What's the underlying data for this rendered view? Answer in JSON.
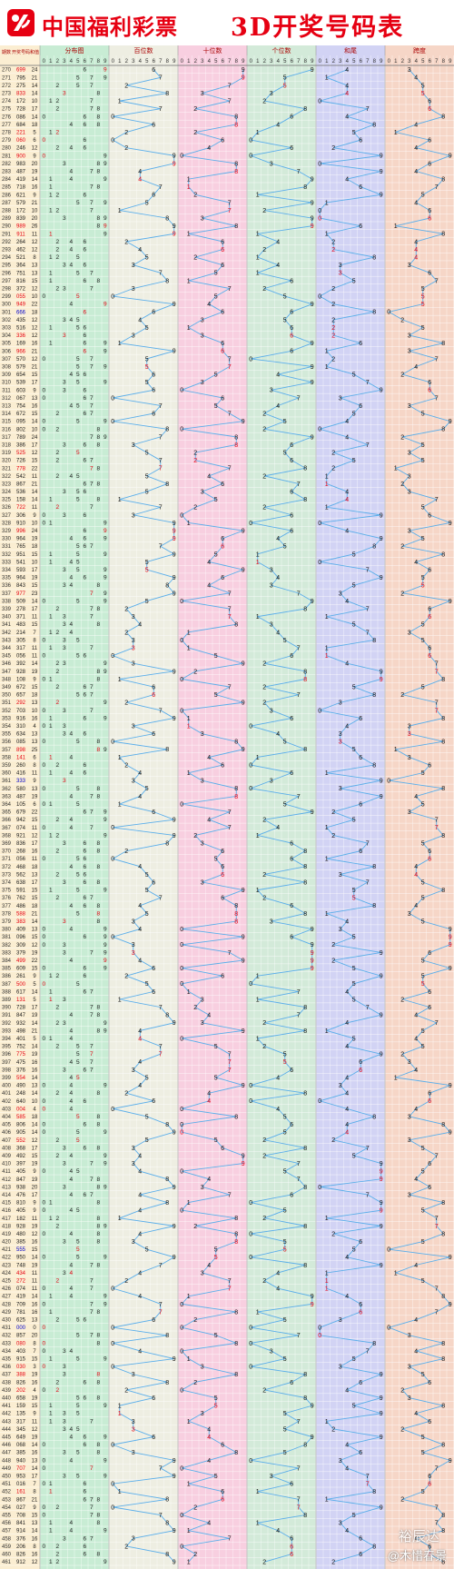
{
  "header": {
    "brand": "中国福利彩票",
    "title": "3D开奖号码表"
  },
  "watermark": {
    "top": "裕辰达",
    "bottom": "@木惜春景"
  },
  "colors": {
    "brand_red": "#e60012",
    "line": "#5aaeea",
    "bg_fenbu": "#c8ecd4",
    "bg_bai": "#eeeee2",
    "bg_shi": "#f8cfe0",
    "bg_ge": "#d3ead9",
    "bg_he": "#d2d3f4",
    "bg_kua": "#f6d6c7"
  },
  "chart_data": {
    "type": "table",
    "columns": {
      "issue": "期数",
      "number": "开奖号码",
      "sum": "和值",
      "sections": [
        "分布图",
        "百位数",
        "十位数",
        "个位数",
        "和尾",
        "跨度"
      ],
      "digits": [
        "0",
        "1",
        "2",
        "3",
        "4",
        "5",
        "6",
        "7",
        "8",
        "9"
      ]
    },
    "rows": [
      {
        "issue": "270",
        "number": "699",
        "sum": "24"
      },
      {
        "issue": "271",
        "number": "795",
        "sum": "21"
      },
      {
        "issue": "272",
        "number": "275",
        "sum": "14"
      },
      {
        "issue": "273",
        "number": "833",
        "sum": "14"
      },
      {
        "issue": "274",
        "number": "172",
        "sum": "10"
      },
      {
        "issue": "275",
        "number": "728",
        "sum": "17"
      },
      {
        "issue": "276",
        "number": "086",
        "sum": "14"
      },
      {
        "issue": "277",
        "number": "684",
        "sum": "18"
      },
      {
        "issue": "278",
        "number": "221",
        "sum": "5"
      },
      {
        "issue": "279",
        "number": "060",
        "sum": "6"
      },
      {
        "issue": "280",
        "number": "246",
        "sum": "12"
      },
      {
        "issue": "281",
        "number": "900",
        "sum": "9"
      },
      {
        "issue": "282",
        "number": "983",
        "sum": "20"
      },
      {
        "issue": "283",
        "number": "487",
        "sum": "19"
      },
      {
        "issue": "284",
        "number": "419",
        "sum": "14"
      },
      {
        "issue": "285",
        "number": "718",
        "sum": "16"
      },
      {
        "issue": "286",
        "number": "621",
        "sum": "9"
      },
      {
        "issue": "287",
        "number": "579",
        "sum": "21"
      },
      {
        "issue": "288",
        "number": "172",
        "sum": "10"
      },
      {
        "issue": "289",
        "number": "839",
        "sum": "20"
      },
      {
        "issue": "290",
        "number": "989",
        "sum": "26"
      },
      {
        "issue": "291",
        "number": "911",
        "sum": "11"
      },
      {
        "issue": "292",
        "number": "264",
        "sum": "12"
      },
      {
        "issue": "293",
        "number": "462",
        "sum": "12"
      },
      {
        "issue": "294",
        "number": "521",
        "sum": "8"
      },
      {
        "issue": "295",
        "number": "364",
        "sum": "13"
      },
      {
        "issue": "296",
        "number": "751",
        "sum": "13"
      },
      {
        "issue": "297",
        "number": "816",
        "sum": "15"
      },
      {
        "issue": "298",
        "number": "372",
        "sum": "12"
      },
      {
        "issue": "299",
        "number": "055",
        "sum": "10"
      },
      {
        "issue": "300",
        "number": "949",
        "sum": "22"
      },
      {
        "issue": "301",
        "number": "666",
        "sum": "18"
      },
      {
        "issue": "302",
        "number": "435",
        "sum": "12"
      },
      {
        "issue": "303",
        "number": "516",
        "sum": "12"
      },
      {
        "issue": "304",
        "number": "336",
        "sum": "12"
      },
      {
        "issue": "305",
        "number": "169",
        "sum": "16"
      },
      {
        "issue": "306",
        "number": "966",
        "sum": "21"
      },
      {
        "issue": "307",
        "number": "570",
        "sum": "12"
      },
      {
        "issue": "308",
        "number": "579",
        "sum": "21"
      },
      {
        "issue": "309",
        "number": "654",
        "sum": "15"
      },
      {
        "issue": "310",
        "number": "539",
        "sum": "17"
      },
      {
        "issue": "311",
        "number": "603",
        "sum": "9"
      },
      {
        "issue": "312",
        "number": "067",
        "sum": "13"
      },
      {
        "issue": "313",
        "number": "754",
        "sum": "16"
      },
      {
        "issue": "314",
        "number": "672",
        "sum": "15"
      },
      {
        "issue": "315",
        "number": "095",
        "sum": "14"
      },
      {
        "issue": "316",
        "number": "802",
        "sum": "10"
      },
      {
        "issue": "317",
        "number": "789",
        "sum": "24"
      },
      {
        "issue": "318",
        "number": "386",
        "sum": "17"
      },
      {
        "issue": "319",
        "number": "525",
        "sum": "12"
      },
      {
        "issue": "320",
        "number": "726",
        "sum": "15"
      },
      {
        "issue": "321",
        "number": "778",
        "sum": "22"
      },
      {
        "issue": "322",
        "number": "542",
        "sum": "11"
      },
      {
        "issue": "323",
        "number": "867",
        "sum": "21"
      },
      {
        "issue": "324",
        "number": "536",
        "sum": "14"
      },
      {
        "issue": "325",
        "number": "158",
        "sum": "14"
      },
      {
        "issue": "326",
        "number": "722",
        "sum": "11"
      },
      {
        "issue": "327",
        "number": "306",
        "sum": "9"
      },
      {
        "issue": "328",
        "number": "910",
        "sum": "10"
      },
      {
        "issue": "329",
        "number": "996",
        "sum": "24"
      },
      {
        "issue": "330",
        "number": "964",
        "sum": "19"
      },
      {
        "issue": "331",
        "number": "765",
        "sum": "18"
      },
      {
        "issue": "332",
        "number": "951",
        "sum": "15"
      },
      {
        "issue": "333",
        "number": "541",
        "sum": "10"
      },
      {
        "issue": "334",
        "number": "593",
        "sum": "17"
      },
      {
        "issue": "335",
        "number": "964",
        "sum": "19"
      },
      {
        "issue": "336",
        "number": "843",
        "sum": "15"
      },
      {
        "issue": "337",
        "number": "977",
        "sum": "23"
      },
      {
        "issue": "338",
        "number": "509",
        "sum": "14"
      },
      {
        "issue": "339",
        "number": "278",
        "sum": "17"
      },
      {
        "issue": "340",
        "number": "371",
        "sum": "11"
      },
      {
        "issue": "341",
        "number": "483",
        "sum": "15"
      },
      {
        "issue": "342",
        "number": "214",
        "sum": "7"
      },
      {
        "issue": "343",
        "number": "305",
        "sum": "8"
      },
      {
        "issue": "344",
        "number": "317",
        "sum": "11"
      },
      {
        "issue": "345",
        "number": "056",
        "sum": "11"
      },
      {
        "issue": "346",
        "number": "392",
        "sum": "14"
      },
      {
        "issue": "347",
        "number": "928",
        "sum": "19"
      },
      {
        "issue": "348",
        "number": "108",
        "sum": "9"
      },
      {
        "issue": "349",
        "number": "672",
        "sum": "15"
      },
      {
        "issue": "350",
        "number": "657",
        "sum": "18"
      },
      {
        "issue": "351",
        "number": "292",
        "sum": "13"
      },
      {
        "issue": "352",
        "number": "703",
        "sum": "10"
      },
      {
        "issue": "353",
        "number": "916",
        "sum": "16"
      },
      {
        "issue": "354",
        "number": "310",
        "sum": "4"
      },
      {
        "issue": "355",
        "number": "634",
        "sum": "13"
      },
      {
        "issue": "356",
        "number": "085",
        "sum": "13"
      },
      {
        "issue": "357",
        "number": "898",
        "sum": "25"
      },
      {
        "issue": "358",
        "number": "141",
        "sum": "6"
      },
      {
        "issue": "359",
        "number": "260",
        "sum": "8"
      },
      {
        "issue": "360",
        "number": "416",
        "sum": "11"
      },
      {
        "issue": "361",
        "number": "333",
        "sum": "9"
      },
      {
        "issue": "362",
        "number": "580",
        "sum": "13"
      },
      {
        "issue": "363",
        "number": "487",
        "sum": "19"
      },
      {
        "issue": "364",
        "number": "105",
        "sum": "6"
      },
      {
        "issue": "365",
        "number": "679",
        "sum": "22"
      },
      {
        "issue": "366",
        "number": "942",
        "sum": "15"
      },
      {
        "issue": "367",
        "number": "074",
        "sum": "11"
      },
      {
        "issue": "368",
        "number": "921",
        "sum": "12"
      },
      {
        "issue": "369",
        "number": "836",
        "sum": "17"
      },
      {
        "issue": "370",
        "number": "268",
        "sum": "16"
      },
      {
        "issue": "371",
        "number": "056",
        "sum": "11"
      },
      {
        "issue": "372",
        "number": "468",
        "sum": "18"
      },
      {
        "issue": "373",
        "number": "562",
        "sum": "13"
      },
      {
        "issue": "374",
        "number": "638",
        "sum": "17"
      },
      {
        "issue": "375",
        "number": "591",
        "sum": "15"
      },
      {
        "issue": "376",
        "number": "762",
        "sum": "15"
      },
      {
        "issue": "377",
        "number": "486",
        "sum": "18"
      },
      {
        "issue": "378",
        "number": "588",
        "sum": "21"
      },
      {
        "issue": "379",
        "number": "383",
        "sum": "14"
      },
      {
        "issue": "380",
        "number": "409",
        "sum": "13"
      },
      {
        "issue": "381",
        "number": "096",
        "sum": "15"
      },
      {
        "issue": "382",
        "number": "309",
        "sum": "12"
      },
      {
        "issue": "383",
        "number": "379",
        "sum": "19"
      },
      {
        "issue": "384",
        "number": "499",
        "sum": "22"
      },
      {
        "issue": "385",
        "number": "609",
        "sum": "15"
      },
      {
        "issue": "386",
        "number": "261",
        "sum": "9"
      },
      {
        "issue": "387",
        "number": "500",
        "sum": "5"
      },
      {
        "issue": "388",
        "number": "617",
        "sum": "14"
      },
      {
        "issue": "389",
        "number": "131",
        "sum": "5"
      },
      {
        "issue": "390",
        "number": "728",
        "sum": "17"
      },
      {
        "issue": "391",
        "number": "847",
        "sum": "19"
      },
      {
        "issue": "392",
        "number": "932",
        "sum": "14"
      },
      {
        "issue": "393",
        "number": "498",
        "sum": "21"
      },
      {
        "issue": "394",
        "number": "401",
        "sum": "5"
      },
      {
        "issue": "395",
        "number": "752",
        "sum": "14"
      },
      {
        "issue": "396",
        "number": "775",
        "sum": "19"
      },
      {
        "issue": "397",
        "number": "475",
        "sum": "16"
      },
      {
        "issue": "398",
        "number": "376",
        "sum": "16"
      },
      {
        "issue": "399",
        "number": "554",
        "sum": "14"
      },
      {
        "issue": "400",
        "number": "490",
        "sum": "13"
      },
      {
        "issue": "401",
        "number": "248",
        "sum": "14"
      },
      {
        "issue": "402",
        "number": "640",
        "sum": "10"
      },
      {
        "issue": "403",
        "number": "004",
        "sum": "4"
      },
      {
        "issue": "404",
        "number": "585",
        "sum": "18"
      },
      {
        "issue": "405",
        "number": "806",
        "sum": "14"
      },
      {
        "issue": "406",
        "number": "905",
        "sum": "14"
      },
      {
        "issue": "407",
        "number": "552",
        "sum": "12"
      },
      {
        "issue": "408",
        "number": "368",
        "sum": "17"
      },
      {
        "issue": "409",
        "number": "492",
        "sum": "15"
      },
      {
        "issue": "410",
        "number": "397",
        "sum": "19"
      },
      {
        "issue": "411",
        "number": "405",
        "sum": "9"
      },
      {
        "issue": "412",
        "number": "847",
        "sum": "19"
      },
      {
        "issue": "413",
        "number": "938",
        "sum": "20"
      },
      {
        "issue": "414",
        "number": "476",
        "sum": "17"
      },
      {
        "issue": "415",
        "number": "810",
        "sum": "9"
      },
      {
        "issue": "416",
        "number": "405",
        "sum": "9"
      },
      {
        "issue": "417",
        "number": "182",
        "sum": "11"
      },
      {
        "issue": "418",
        "number": "928",
        "sum": "19"
      },
      {
        "issue": "419",
        "number": "480",
        "sum": "12"
      },
      {
        "issue": "420",
        "number": "385",
        "sum": "16"
      },
      {
        "issue": "421",
        "number": "555",
        "sum": "15"
      },
      {
        "issue": "422",
        "number": "950",
        "sum": "14"
      },
      {
        "issue": "423",
        "number": "748",
        "sum": "19"
      },
      {
        "issue": "424",
        "number": "434",
        "sum": "11"
      },
      {
        "issue": "425",
        "number": "272",
        "sum": "11"
      },
      {
        "issue": "426",
        "number": "074",
        "sum": "11"
      },
      {
        "issue": "427",
        "number": "419",
        "sum": "14"
      },
      {
        "issue": "428",
        "number": "709",
        "sum": "16"
      },
      {
        "issue": "429",
        "number": "781",
        "sum": "16"
      },
      {
        "issue": "430",
        "number": "625",
        "sum": "13"
      },
      {
        "issue": "431",
        "number": "000",
        "sum": "0"
      },
      {
        "issue": "432",
        "number": "857",
        "sum": "20"
      },
      {
        "issue": "433",
        "number": "080",
        "sum": "8"
      },
      {
        "issue": "434",
        "number": "403",
        "sum": "7"
      },
      {
        "issue": "435",
        "number": "915",
        "sum": "15"
      },
      {
        "issue": "436",
        "number": "030",
        "sum": "3"
      },
      {
        "issue": "437",
        "number": "388",
        "sum": "19"
      },
      {
        "issue": "438",
        "number": "826",
        "sum": "16"
      },
      {
        "issue": "439",
        "number": "202",
        "sum": "4"
      },
      {
        "issue": "440",
        "number": "658",
        "sum": "19"
      },
      {
        "issue": "441",
        "number": "159",
        "sum": "15"
      },
      {
        "issue": "442",
        "number": "135",
        "sum": "9"
      },
      {
        "issue": "443",
        "number": "317",
        "sum": "11"
      },
      {
        "issue": "444",
        "number": "345",
        "sum": "12"
      },
      {
        "issue": "445",
        "number": "649",
        "sum": "19"
      },
      {
        "issue": "446",
        "number": "068",
        "sum": "14"
      },
      {
        "issue": "447",
        "number": "385",
        "sum": "16"
      },
      {
        "issue": "448",
        "number": "940",
        "sum": "13"
      },
      {
        "issue": "449",
        "number": "707",
        "sum": "14"
      },
      {
        "issue": "450",
        "number": "953",
        "sum": "17"
      },
      {
        "issue": "451",
        "number": "016",
        "sum": "7"
      },
      {
        "issue": "452",
        "number": "161",
        "sum": "8"
      },
      {
        "issue": "453",
        "number": "867",
        "sum": "21"
      },
      {
        "issue": "454",
        "number": "027",
        "sum": "9"
      },
      {
        "issue": "455",
        "number": "708",
        "sum": "15"
      },
      {
        "issue": "456",
        "number": "841",
        "sum": "13"
      },
      {
        "issue": "457",
        "number": "914",
        "sum": "14"
      },
      {
        "issue": "458",
        "number": "376",
        "sum": "16"
      },
      {
        "issue": "459",
        "number": "206",
        "sum": "8"
      },
      {
        "issue": "460",
        "number": "826",
        "sum": "16"
      },
      {
        "issue": "461",
        "number": "912",
        "sum": "12"
      }
    ]
  }
}
